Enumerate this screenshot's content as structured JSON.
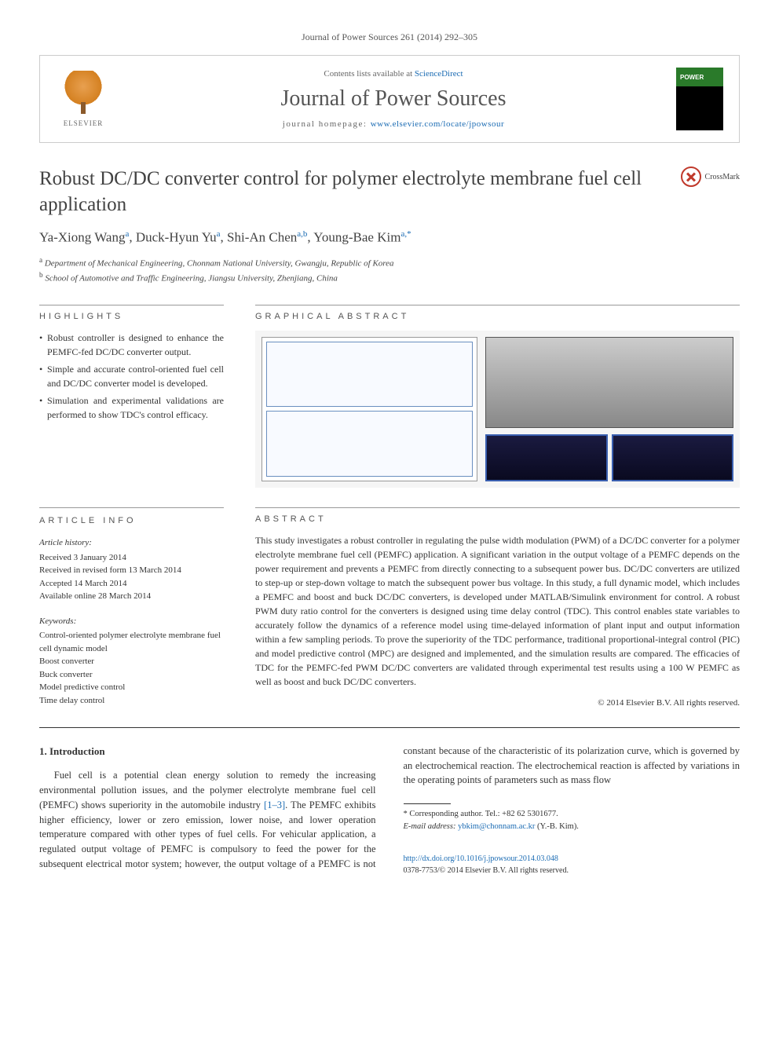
{
  "journal_ref": "Journal of Power Sources 261 (2014) 292–305",
  "header": {
    "publisher": "ELSEVIER",
    "contents_prefix": "Contents lists available at ",
    "contents_link": "ScienceDirect",
    "journal_name": "Journal of Power Sources",
    "homepage_prefix": "journal homepage: ",
    "homepage_url": "www.elsevier.com/locate/jpowsour"
  },
  "crossmark_label": "CrossMark",
  "title": "Robust DC/DC converter control for polymer electrolyte membrane fuel cell application",
  "authors_html": "Ya-Xiong Wang",
  "authors": [
    {
      "name": "Ya-Xiong Wang",
      "sup": "a"
    },
    {
      "name": "Duck-Hyun Yu",
      "sup": "a"
    },
    {
      "name": "Shi-An Chen",
      "sup": "a,b"
    },
    {
      "name": "Young-Bae Kim",
      "sup": "a,",
      "corr": "*"
    }
  ],
  "affiliations": [
    {
      "sup": "a",
      "text": "Department of Mechanical Engineering, Chonnam National University, Gwangju, Republic of Korea"
    },
    {
      "sup": "b",
      "text": "School of Automotive and Traffic Engineering, Jiangsu University, Zhenjiang, China"
    }
  ],
  "labels": {
    "highlights": "HIGHLIGHTS",
    "graphical_abstract": "GRAPHICAL ABSTRACT",
    "article_info": "ARTICLE INFO",
    "abstract": "ABSTRACT"
  },
  "highlights": [
    "Robust controller is designed to enhance the PEMFC-fed DC/DC converter output.",
    "Simple and accurate control-oriented fuel cell and DC/DC converter model is developed.",
    "Simulation and experimental validations are performed to show TDC's control efficacy."
  ],
  "article_info": {
    "history_label": "Article history:",
    "received": "Received 3 January 2014",
    "revised": "Received in revised form 13 March 2014",
    "accepted": "Accepted 14 March 2014",
    "online": "Available online 28 March 2014",
    "keywords_label": "Keywords:",
    "keywords": [
      "Control-oriented polymer electrolyte membrane fuel cell dynamic model",
      "Boost converter",
      "Buck converter",
      "Model predictive control",
      "Time delay control"
    ]
  },
  "abstract": "This study investigates a robust controller in regulating the pulse width modulation (PWM) of a DC/DC converter for a polymer electrolyte membrane fuel cell (PEMFC) application. A significant variation in the output voltage of a PEMFC depends on the power requirement and prevents a PEMFC from directly connecting to a subsequent power bus. DC/DC converters are utilized to step-up or step-down voltage to match the subsequent power bus voltage. In this study, a full dynamic model, which includes a PEMFC and boost and buck DC/DC converters, is developed under MATLAB/Simulink environment for control. A robust PWM duty ratio control for the converters is designed using time delay control (TDC). This control enables state variables to accurately follow the dynamics of a reference model using time-delayed information of plant input and output information within a few sampling periods. To prove the superiority of the TDC performance, traditional proportional-integral control (PIC) and model predictive control (MPC) are designed and implemented, and the simulation results are compared. The efficacies of TDC for the PEMFC-fed PWM DC/DC converters are validated through experimental test results using a 100 W PEMFC as well as boost and buck DC/DC converters.",
  "copyright": "© 2014 Elsevier B.V. All rights reserved.",
  "intro": {
    "heading": "1. Introduction",
    "para1": "Fuel cell is a potential clean energy solution to remedy the increasing environmental pollution issues, and the polymer electrolyte membrane fuel cell (PEMFC) shows superiority in the",
    "para2_pre": "automobile industry ",
    "para2_ref": "[1–3]",
    "para2_post": ". The PEMFC exhibits higher efficiency, lower or zero emission, lower noise, and lower operation temperature compared with other types of fuel cells. For vehicular application, a regulated output voltage of PEMFC is compulsory to feed the power for the subsequent electrical motor system; however, the output voltage of a PEMFC is not constant because of the characteristic of its polarization curve, which is governed by an electrochemical reaction. The electrochemical reaction is affected by variations in the operating points of parameters such as mass flow"
  },
  "corresponding": {
    "label": "* Corresponding author. Tel.: +82 62 5301677.",
    "email_label": "E-mail address: ",
    "email": "ybkim@chonnam.ac.kr",
    "email_suffix": " (Y.-B. Kim)."
  },
  "footer": {
    "doi": "http://dx.doi.org/10.1016/j.jpowsour.2014.03.048",
    "issn_line": "0378-7753/© 2014 Elsevier B.V. All rights reserved."
  },
  "colors": {
    "link": "#1a6bb3",
    "text": "#333333",
    "heading": "#424242",
    "rule": "#999999"
  }
}
